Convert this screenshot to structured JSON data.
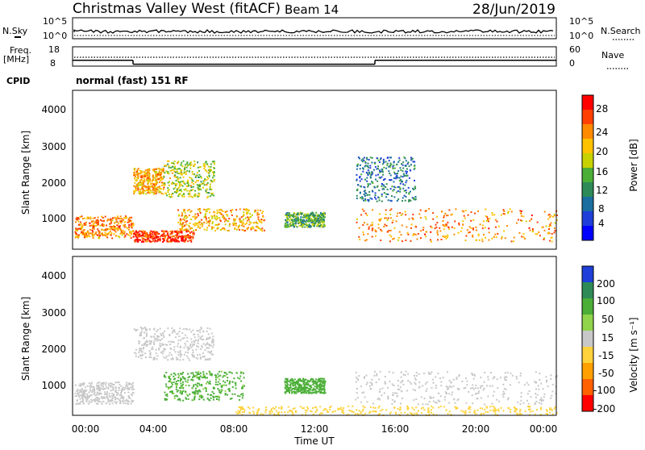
{
  "header": {
    "station": "Christmas Valley West (fitACF)",
    "beam": "Beam 14",
    "date": "28/Jun/2019"
  },
  "noise_panel": {
    "left_label": "N.Sky",
    "right_label": "N.Search",
    "left_ticks": [
      "10^5",
      "10^0"
    ],
    "right_ticks": [
      "10^5",
      "10^0"
    ]
  },
  "freq_panel": {
    "left_label_1": "Freq.",
    "left_label_2": "[MHz]",
    "right_label": "Nave",
    "left_ticks": [
      "18",
      "8"
    ],
    "right_ticks": [
      "60",
      "0"
    ]
  },
  "cpid": {
    "label": "CPID",
    "value": "normal (fast) 151 RF"
  },
  "x_axis": {
    "label": "Time UT",
    "ticks": [
      "00:00",
      "04:00",
      "08:00",
      "12:00",
      "16:00",
      "20:00",
      "00:00"
    ]
  },
  "power_panel": {
    "ylabel": "Slant Range [km]",
    "yticks": [
      "4000",
      "3000",
      "2000",
      "1000"
    ],
    "colorbar_label": "Power [dB]",
    "colorbar_ticks": [
      "28",
      "24",
      "20",
      "16",
      "12",
      "8",
      "4"
    ],
    "colorbar_colors": [
      "#ff0000",
      "#ff4000",
      "#ff8a00",
      "#ffc200",
      "#c8d200",
      "#4bae37",
      "#2e8b57",
      "#1a6fa0",
      "#1f3fd8",
      "#0000ff"
    ]
  },
  "velocity_panel": {
    "ylabel": "Slant Range [km]",
    "yticks": [
      "4000",
      "3000",
      "2000",
      "1000"
    ],
    "colorbar_label": "Velocity [m s⁻¹]",
    "colorbar_ticks": [
      "200",
      "100",
      "50",
      "15",
      "-15",
      "-50",
      "-100",
      "-200"
    ],
    "colorbar_colors": [
      "#1f3fd8",
      "#2e8b57",
      "#4bae37",
      "#8fd44a",
      "#c8c8c8",
      "#ffd23c",
      "#ffa000",
      "#ff6000",
      "#ff0000"
    ]
  },
  "chart_data": {
    "type": "heatmap",
    "time_range_hours": [
      0,
      24
    ],
    "range_km": [
      180,
      4500
    ],
    "frequency_mhz": [
      {
        "t0": 0,
        "t1": 3,
        "value": 11
      },
      {
        "t0": 3,
        "t1": 15,
        "value": 9
      },
      {
        "t0": 15,
        "t1": 24,
        "value": 11
      }
    ],
    "power_regions": [
      {
        "t0": 0.1,
        "t1": 3,
        "r0": 500,
        "r1": 1100,
        "db": 24
      },
      {
        "t0": 3,
        "t1": 4.5,
        "r0": 1700,
        "r1": 2400,
        "db": 22
      },
      {
        "t0": 4.5,
        "t1": 7,
        "r0": 1600,
        "r1": 2600,
        "db": 18
      },
      {
        "t0": 5.2,
        "t1": 9.5,
        "r0": 700,
        "r1": 1300,
        "db": 22
      },
      {
        "t0": 3,
        "t1": 6,
        "r0": 400,
        "r1": 700,
        "db": 28
      },
      {
        "t0": 10.5,
        "t1": 12.5,
        "r0": 800,
        "r1": 1200,
        "db": 14
      },
      {
        "t0": 14,
        "t1": 17,
        "r0": 1500,
        "r1": 2700,
        "db": 10
      },
      {
        "t0": 14,
        "t1": 24,
        "r0": 400,
        "r1": 1300,
        "db": 24
      }
    ],
    "velocity_regions": [
      {
        "t0": 0.1,
        "t1": 3,
        "r0": 500,
        "r1": 1100,
        "v": 0
      },
      {
        "t0": 3,
        "t1": 7,
        "r0": 1700,
        "r1": 2600,
        "v": 0
      },
      {
        "t0": 4.5,
        "t1": 8.5,
        "r0": 600,
        "r1": 1400,
        "v": 60
      },
      {
        "t0": 10.5,
        "t1": 12.5,
        "r0": 800,
        "r1": 1200,
        "v": 70
      },
      {
        "t0": 8,
        "t1": 24,
        "r0": 200,
        "r1": 450,
        "v": -30
      },
      {
        "t0": 14,
        "t1": 24,
        "r0": 500,
        "r1": 1400,
        "v": 0
      }
    ]
  }
}
